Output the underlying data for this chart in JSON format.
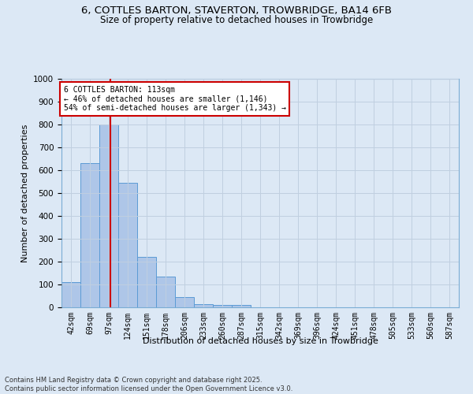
{
  "title_line1": "6, COTTLES BARTON, STAVERTON, TROWBRIDGE, BA14 6FB",
  "title_line2": "Size of property relative to detached houses in Trowbridge",
  "xlabel": "Distribution of detached houses by size in Trowbridge",
  "ylabel": "Number of detached properties",
  "categories": [
    "42sqm",
    "69sqm",
    "97sqm",
    "124sqm",
    "151sqm",
    "178sqm",
    "206sqm",
    "233sqm",
    "260sqm",
    "287sqm",
    "315sqm",
    "342sqm",
    "369sqm",
    "396sqm",
    "424sqm",
    "451sqm",
    "478sqm",
    "505sqm",
    "533sqm",
    "560sqm",
    "587sqm"
  ],
  "values": [
    110,
    630,
    800,
    545,
    220,
    135,
    45,
    15,
    10,
    10,
    0,
    0,
    0,
    0,
    0,
    0,
    0,
    0,
    0,
    0,
    0
  ],
  "bar_color": "#aec6e8",
  "bar_edge_color": "#5b9bd5",
  "vline_color": "#cc0000",
  "ylim": [
    0,
    1000
  ],
  "yticks": [
    0,
    100,
    200,
    300,
    400,
    500,
    600,
    700,
    800,
    900,
    1000
  ],
  "annotation_text": "6 COTTLES BARTON: 113sqm\n← 46% of detached houses are smaller (1,146)\n54% of semi-detached houses are larger (1,343) →",
  "annotation_box_color": "#ffffff",
  "annotation_box_edge": "#cc0000",
  "grid_color": "#c0cfe0",
  "background_color": "#dce8f5",
  "footer_line1": "Contains HM Land Registry data © Crown copyright and database right 2025.",
  "footer_line2": "Contains public sector information licensed under the Open Government Licence v3.0."
}
